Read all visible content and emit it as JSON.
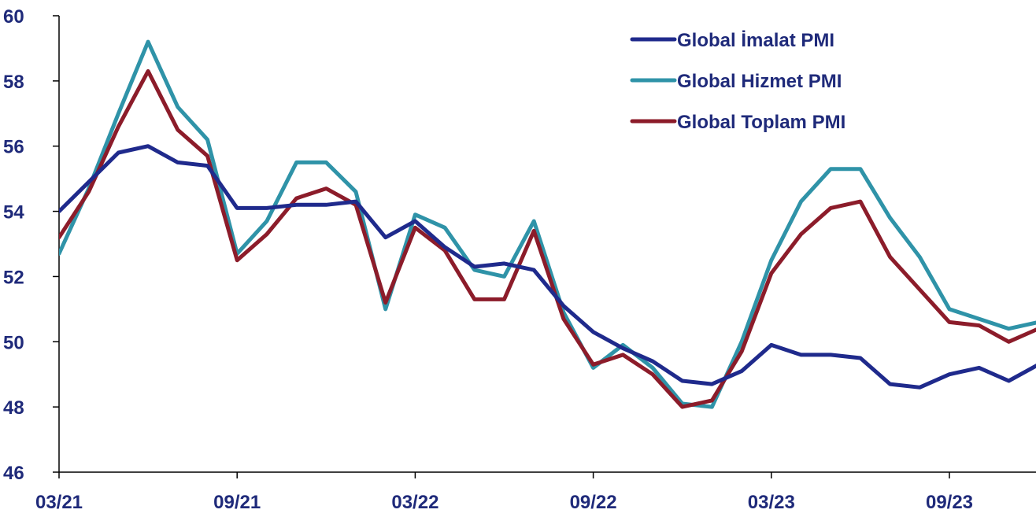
{
  "chart_data": {
    "type": "line",
    "ylim": [
      46,
      60
    ],
    "yticks": [
      "46",
      "48",
      "50",
      "52",
      "54",
      "56",
      "58",
      "60"
    ],
    "x": [
      "03/21",
      "04/21",
      "05/21",
      "06/21",
      "07/21",
      "08/21",
      "09/21",
      "10/21",
      "11/21",
      "12/21",
      "01/22",
      "02/22",
      "03/22",
      "04/22",
      "05/22",
      "06/22",
      "07/22",
      "08/22",
      "09/22",
      "10/22",
      "11/22",
      "12/22",
      "01/23",
      "02/23",
      "03/23",
      "04/23",
      "05/23",
      "06/23",
      "07/23",
      "08/23",
      "09/23",
      "10/23",
      "11/23",
      "12/23"
    ],
    "xticks": [
      "03/21",
      "09/21",
      "03/22",
      "09/22",
      "03/23",
      "09/23"
    ],
    "legend_position": "top-right",
    "series": [
      {
        "name": "Global İmalat PMI",
        "color": "#1f2a8c",
        "values": [
          54.0,
          54.9,
          55.8,
          56.0,
          55.5,
          55.4,
          54.1,
          54.1,
          54.2,
          54.2,
          54.3,
          53.2,
          53.7,
          52.9,
          52.3,
          52.4,
          52.2,
          51.1,
          50.3,
          49.8,
          49.4,
          48.8,
          48.7,
          49.1,
          49.9,
          49.6,
          49.6,
          49.5,
          48.7,
          48.6,
          49.0,
          49.2,
          48.8,
          49.3
        ]
      },
      {
        "name": "Global Hizmet PMI",
        "color": "#2f93a8",
        "values": [
          52.7,
          54.7,
          57.0,
          59.2,
          57.2,
          56.2,
          52.7,
          53.7,
          55.5,
          55.5,
          54.6,
          51.0,
          53.9,
          53.5,
          52.2,
          52.0,
          53.7,
          50.9,
          49.2,
          49.9,
          49.2,
          48.1,
          48.0,
          50.0,
          52.5,
          54.3,
          55.3,
          55.3,
          53.8,
          52.6,
          51.0,
          50.7,
          50.4,
          50.6
        ]
      },
      {
        "name": "Global Toplam PMI",
        "color": "#8c1c2a",
        "values": [
          53.2,
          54.6,
          56.6,
          58.3,
          56.5,
          55.7,
          52.5,
          53.3,
          54.4,
          54.7,
          54.2,
          51.2,
          53.5,
          52.8,
          51.3,
          51.3,
          53.4,
          50.7,
          49.3,
          49.6,
          49.0,
          48.0,
          48.2,
          49.7,
          52.1,
          53.3,
          54.1,
          54.3,
          52.6,
          51.6,
          50.6,
          50.5,
          50.0,
          50.4
        ]
      }
    ]
  }
}
